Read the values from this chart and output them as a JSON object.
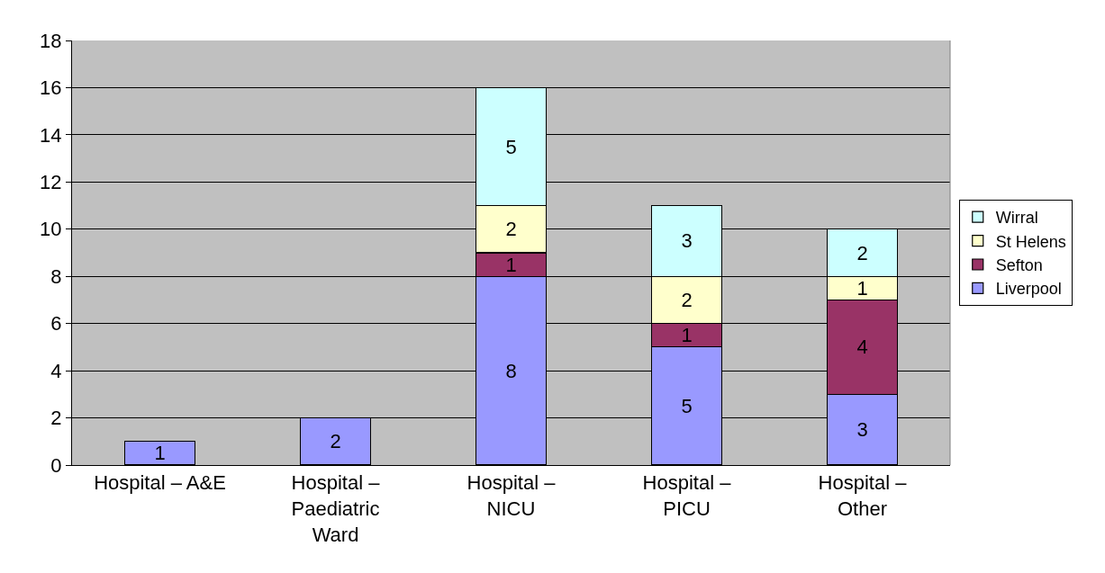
{
  "chart_data": {
    "type": "bar",
    "stacked": true,
    "categories": [
      "Hospital – A&E",
      "Hospital – Paediatric Ward",
      "Hospital – NICU",
      "Hospital – PICU",
      "Hospital – Other"
    ],
    "series": [
      {
        "name": "Liverpool",
        "color": "#9999ff",
        "values": [
          1,
          2,
          8,
          5,
          3
        ]
      },
      {
        "name": "Sefton",
        "color": "#993366",
        "values": [
          null,
          null,
          1,
          1,
          4
        ]
      },
      {
        "name": "St Helens",
        "color": "#ffffcc",
        "values": [
          null,
          null,
          2,
          2,
          1
        ]
      },
      {
        "name": "Wirral",
        "color": "#ccffff",
        "values": [
          null,
          null,
          5,
          3,
          2
        ]
      }
    ],
    "ylim": [
      0,
      18
    ],
    "yticks": [
      0,
      2,
      4,
      6,
      8,
      10,
      12,
      14,
      16,
      18
    ],
    "grid": "y",
    "legend": "right",
    "data_labels": true
  }
}
